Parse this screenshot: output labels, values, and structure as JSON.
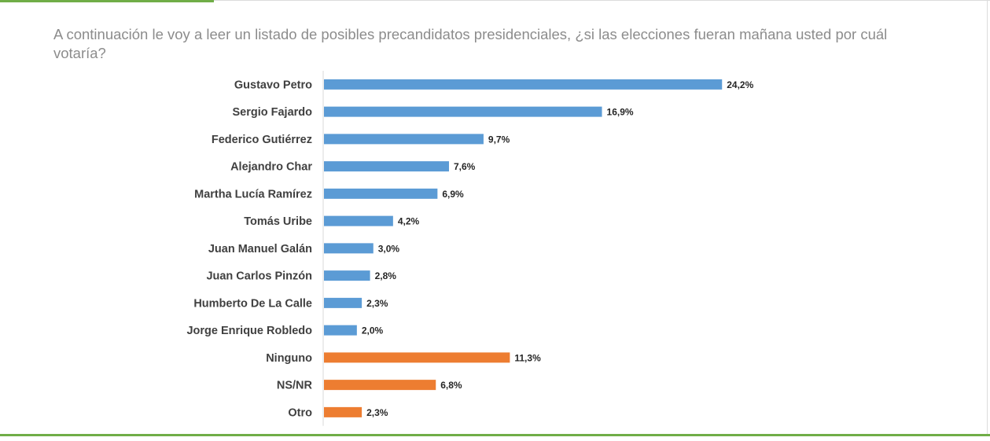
{
  "question": "A continuación le voy a leer un listado de posibles precandidatos presidenciales, ¿si las elecciones fueran mañana usted por cuál votaría?",
  "colors": {
    "candidate_bar": "#5b9bd5",
    "other_bar": "#ed7d31",
    "frame_accent": "#70ad47",
    "axis": "#d9d9d9"
  },
  "chart_data": {
    "type": "bar",
    "orientation": "horizontal",
    "title": "",
    "xlabel": "",
    "ylabel": "",
    "xlim": [
      0,
      27.2
    ],
    "grid": false,
    "legend": "none",
    "categories": [
      "Gustavo Petro",
      "Sergio Fajardo",
      "Federico Gutiérrez",
      "Alejandro Char",
      "Martha Lucía Ramírez",
      "Tomás Uribe",
      "Juan Manuel Galán",
      "Juan Carlos Pinzón",
      "Humberto De La Calle",
      "Jorge Enrique Robledo",
      "Ninguno",
      "NS/NR",
      "Otro"
    ],
    "values": [
      24.2,
      16.9,
      9.7,
      7.6,
      6.9,
      4.2,
      3.0,
      2.8,
      2.3,
      2.0,
      11.3,
      6.8,
      2.3
    ],
    "value_labels": [
      "24,2%",
      "16,9%",
      "9,7%",
      "7,6%",
      "6,9%",
      "4,2%",
      "3,0%",
      "2,8%",
      "2,3%",
      "2,0%",
      "11,3%",
      "6,8%",
      "2,3%"
    ],
    "groups": [
      "candidate",
      "candidate",
      "candidate",
      "candidate",
      "candidate",
      "candidate",
      "candidate",
      "candidate",
      "candidate",
      "candidate",
      "other",
      "other",
      "other"
    ]
  }
}
